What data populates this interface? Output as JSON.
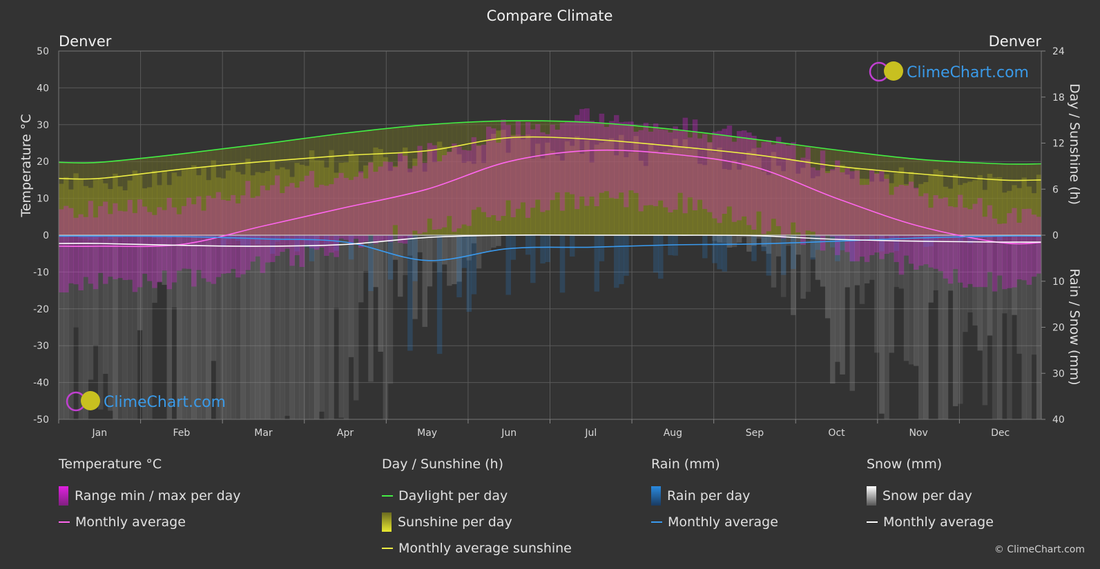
{
  "title": "Compare Climate",
  "location_left": "Denver",
  "location_right": "Denver",
  "watermark": "ClimeChart.com",
  "copyright": "© ClimeChart.com",
  "colors": {
    "background": "#333333",
    "temp_range": "#e020e0",
    "temp_avg": "#ff66ee",
    "daylight": "#44ee44",
    "sunshine_fill": "#a8a820",
    "sunshine_avg": "#eeee44",
    "rain": "#2a8ae0",
    "rain_avg": "#3a9aee",
    "snow": "#c8c8c8",
    "snow_avg": "#ffffff"
  },
  "chart_data": {
    "type": "line",
    "categories": [
      "Jan",
      "Feb",
      "Mar",
      "Apr",
      "May",
      "Jun",
      "Jul",
      "Aug",
      "Sep",
      "Oct",
      "Nov",
      "Dec"
    ],
    "left_axis": {
      "label": "Temperature °C",
      "range": [
        -50,
        50
      ],
      "ticks": [
        50,
        40,
        30,
        20,
        10,
        0,
        -10,
        -20,
        -30,
        -40,
        -50
      ]
    },
    "right_axis_top": {
      "label": "Day / Sunshine (h)",
      "range": [
        0,
        24
      ],
      "ticks": [
        24,
        18,
        12,
        6,
        0
      ]
    },
    "right_axis_bottom": {
      "label": "Rain / Snow (mm)",
      "range": [
        0,
        40
      ],
      "ticks": [
        10,
        20,
        30,
        40
      ]
    },
    "grid": true,
    "series": [
      {
        "name": "Temperature Monthly average",
        "axis": "temperature",
        "values": [
          -3.0,
          -2.5,
          2.5,
          7.5,
          12.5,
          20.0,
          23.0,
          22.0,
          18.5,
          10.0,
          2.5,
          -2.0
        ]
      },
      {
        "name": "Daylight per day",
        "axis": "hours",
        "values": [
          9.5,
          10.6,
          11.9,
          13.3,
          14.4,
          14.9,
          14.7,
          13.8,
          12.5,
          11.1,
          9.9,
          9.3
        ]
      },
      {
        "name": "Monthly average sunshine",
        "axis": "hours",
        "values": [
          7.4,
          8.6,
          9.6,
          10.4,
          11.0,
          12.7,
          12.5,
          11.6,
          10.5,
          9.0,
          8.0,
          7.2
        ]
      },
      {
        "name": "Rain Monthly average",
        "axis": "precip",
        "values": [
          0.2,
          0.3,
          0.8,
          1.5,
          5.5,
          2.9,
          2.6,
          2.1,
          1.9,
          1.3,
          0.6,
          0.2
        ]
      },
      {
        "name": "Snow Monthly average",
        "axis": "precip",
        "values": [
          1.8,
          2.2,
          2.4,
          2.0,
          0.5,
          0.0,
          0.0,
          0.0,
          0.1,
          0.9,
          1.3,
          1.5
        ]
      }
    ],
    "temp_range_max": [
      7.0,
      8.0,
      13.0,
      17.0,
      22.0,
      29.0,
      32.0,
      30.0,
      26.0,
      19.0,
      11.0,
      6.0
    ],
    "temp_range_min": [
      -9.0,
      -8.0,
      -4.0,
      1.0,
      6.0,
      11.0,
      14.0,
      13.0,
      8.0,
      1.0,
      -5.0,
      -9.0
    ]
  },
  "legend": [
    {
      "title": "Temperature °C",
      "items": [
        {
          "label": "Range min / max per day",
          "kind": "box",
          "color": "#e020e0"
        },
        {
          "label": "Monthly average",
          "kind": "line",
          "color": "#ff66ee"
        }
      ]
    },
    {
      "title": "Day / Sunshine (h)",
      "items": [
        {
          "label": "Daylight per day",
          "kind": "line",
          "color": "#44ee44"
        },
        {
          "label": "Sunshine per day",
          "kind": "box",
          "color": "#c8c830"
        },
        {
          "label": "Monthly average sunshine",
          "kind": "line",
          "color": "#eeee44"
        }
      ]
    },
    {
      "title": "Rain (mm)",
      "items": [
        {
          "label": "Rain per day",
          "kind": "box",
          "color": "#2a8ae0"
        },
        {
          "label": "Monthly average",
          "kind": "line",
          "color": "#3a9aee"
        }
      ]
    },
    {
      "title": "Snow (mm)",
      "items": [
        {
          "label": "Snow per day",
          "kind": "box",
          "color": "#dddddd"
        },
        {
          "label": "Monthly average",
          "kind": "line",
          "color": "#ffffff"
        }
      ]
    }
  ]
}
